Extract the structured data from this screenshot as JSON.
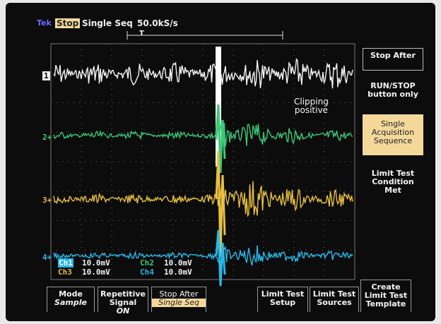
{
  "header": {
    "brand": "Tek",
    "state": "Stop",
    "mode": "Single Seq",
    "rate": "50.0kS/s",
    "trigger_marker": "T"
  },
  "channels": [
    {
      "marker": "1",
      "scale_label": "Ch1",
      "scale": "10.0mV"
    },
    {
      "marker": "2+",
      "scale_label": "Ch2",
      "scale": "10.0mV"
    },
    {
      "marker": "3+",
      "scale_label": "Ch3",
      "scale": "10.0mV"
    },
    {
      "marker": "4+",
      "scale_label": "Ch4",
      "scale": "10.0mV"
    }
  ],
  "annotation": {
    "line1": "Clipping",
    "line2": "positive"
  },
  "side_menu": [
    {
      "label": "Stop After"
    },
    {
      "label": "RUN/STOP button only"
    },
    {
      "label": "Single Acquisition Sequence"
    },
    {
      "label": "Limit Test Condition Met"
    }
  ],
  "bottom_menu": [
    {
      "label": "Mode",
      "value": "Sample"
    },
    {
      "label": "Repetitive Signal",
      "value": "ON"
    },
    {
      "label": "Stop After",
      "value": "Single Seq"
    },
    {
      "label": "Limit Test Setup"
    },
    {
      "label": "Limit Test Sources"
    },
    {
      "label": "Create Limit Test Template"
    }
  ]
}
